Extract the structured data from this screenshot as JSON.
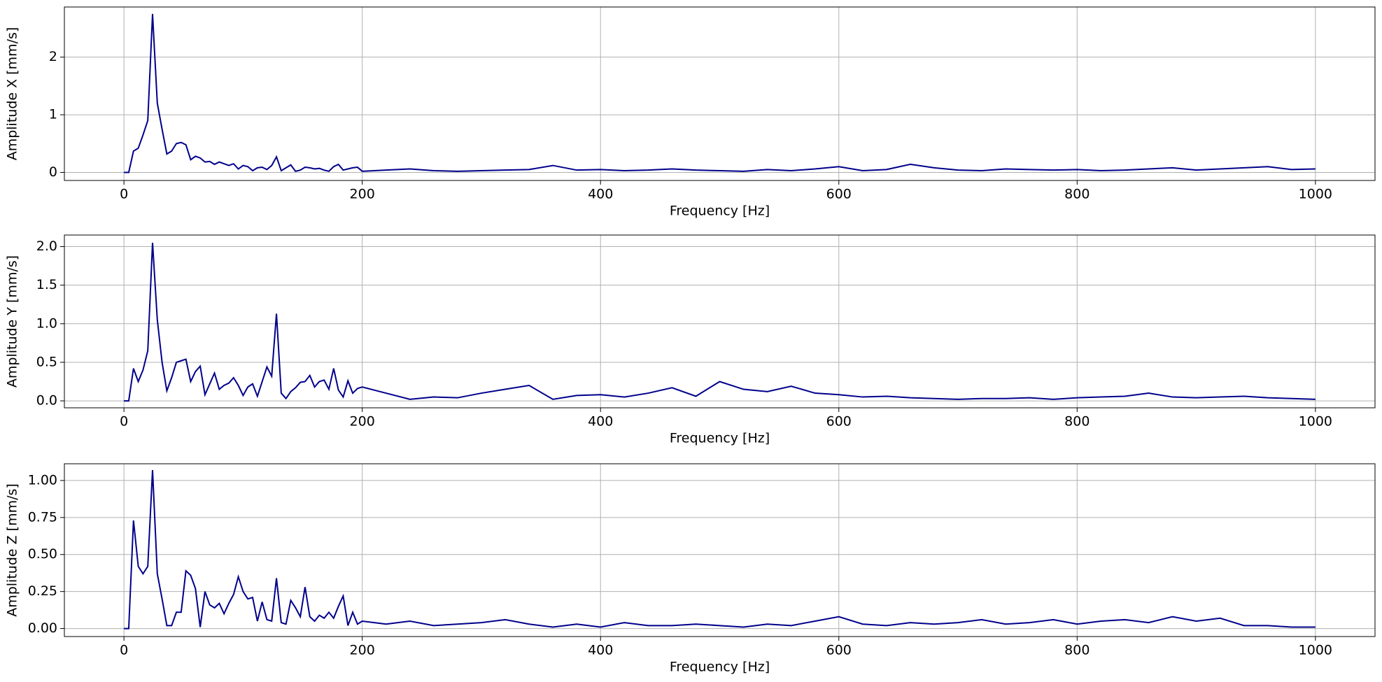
{
  "chart_data": [
    {
      "type": "line",
      "xlabel": "Frequency [Hz]",
      "ylabel": "Amplitude X [mm/s]",
      "color": "#00008b",
      "grid": true,
      "xlim": [
        -50,
        1050
      ],
      "xticks": [
        0,
        200,
        400,
        600,
        800,
        1000
      ],
      "ylim": [
        -0.14,
        2.87
      ],
      "yticks": [
        0,
        1,
        2
      ],
      "x": [
        0,
        4,
        8,
        12,
        16,
        20,
        24,
        28,
        32,
        36,
        40,
        44,
        48,
        52,
        56,
        60,
        64,
        68,
        72,
        76,
        80,
        84,
        88,
        92,
        96,
        100,
        104,
        108,
        112,
        116,
        120,
        124,
        128,
        132,
        136,
        140,
        144,
        148,
        152,
        156,
        160,
        164,
        168,
        172,
        176,
        180,
        184,
        188,
        192,
        196,
        200,
        220,
        240,
        260,
        280,
        300,
        320,
        340,
        360,
        380,
        400,
        420,
        440,
        460,
        480,
        500,
        520,
        540,
        560,
        580,
        600,
        620,
        640,
        660,
        680,
        700,
        720,
        740,
        760,
        780,
        800,
        820,
        840,
        860,
        880,
        900,
        920,
        940,
        960,
        980,
        1000
      ],
      "values": [
        0,
        0,
        0.37,
        0.42,
        0.65,
        0.9,
        2.75,
        1.2,
        0.75,
        0.32,
        0.37,
        0.5,
        0.52,
        0.48,
        0.22,
        0.28,
        0.25,
        0.18,
        0.19,
        0.14,
        0.18,
        0.15,
        0.12,
        0.15,
        0.06,
        0.12,
        0.1,
        0.03,
        0.08,
        0.09,
        0.05,
        0.12,
        0.27,
        0.03,
        0.08,
        0.13,
        0.02,
        0.04,
        0.09,
        0.08,
        0.06,
        0.07,
        0.04,
        0.02,
        0.1,
        0.14,
        0.04,
        0.06,
        0.08,
        0.09,
        0.02,
        0.04,
        0.06,
        0.03,
        0.02,
        0.03,
        0.04,
        0.05,
        0.12,
        0.04,
        0.05,
        0.03,
        0.04,
        0.06,
        0.04,
        0.03,
        0.02,
        0.05,
        0.03,
        0.06,
        0.1,
        0.03,
        0.05,
        0.14,
        0.08,
        0.04,
        0.03,
        0.06,
        0.05,
        0.04,
        0.05,
        0.03,
        0.04,
        0.06,
        0.08,
        0.04,
        0.06,
        0.08,
        0.1,
        0.05,
        0.06
      ]
    },
    {
      "type": "line",
      "xlabel": "Frequency [Hz]",
      "ylabel": "Amplitude Y [mm/s]",
      "color": "#00008b",
      "grid": true,
      "xlim": [
        -50,
        1050
      ],
      "xticks": [
        0,
        200,
        400,
        600,
        800,
        1000
      ],
      "ylim": [
        -0.09,
        2.15
      ],
      "yticks": [
        {
          "value": 0,
          "label": "0.0"
        },
        {
          "value": 0.5,
          "label": "0.5"
        },
        {
          "value": 1,
          "label": "1.0"
        },
        {
          "value": 1.5,
          "label": "1.5"
        },
        {
          "value": 2,
          "label": "2.0"
        }
      ],
      "x": [
        0,
        4,
        8,
        12,
        16,
        20,
        24,
        28,
        32,
        36,
        40,
        44,
        48,
        52,
        56,
        60,
        64,
        68,
        72,
        76,
        80,
        84,
        88,
        92,
        96,
        100,
        104,
        108,
        112,
        116,
        120,
        124,
        128,
        132,
        136,
        140,
        144,
        148,
        152,
        156,
        160,
        164,
        168,
        172,
        176,
        180,
        184,
        188,
        192,
        196,
        200,
        220,
        240,
        260,
        280,
        300,
        320,
        340,
        360,
        380,
        400,
        420,
        440,
        460,
        480,
        500,
        520,
        540,
        560,
        580,
        600,
        620,
        640,
        660,
        680,
        700,
        720,
        740,
        760,
        780,
        800,
        820,
        840,
        860,
        880,
        900,
        920,
        940,
        960,
        980,
        1000
      ],
      "values": [
        0,
        0,
        0.42,
        0.25,
        0.4,
        0.65,
        2.05,
        1.05,
        0.5,
        0.13,
        0.3,
        0.5,
        0.52,
        0.54,
        0.25,
        0.38,
        0.45,
        0.08,
        0.22,
        0.36,
        0.15,
        0.2,
        0.23,
        0.3,
        0.2,
        0.07,
        0.18,
        0.22,
        0.06,
        0.25,
        0.44,
        0.32,
        1.13,
        0.1,
        0.03,
        0.12,
        0.17,
        0.24,
        0.25,
        0.33,
        0.18,
        0.25,
        0.27,
        0.15,
        0.42,
        0.14,
        0.05,
        0.26,
        0.1,
        0.16,
        0.18,
        0.1,
        0.02,
        0.05,
        0.04,
        0.1,
        0.15,
        0.2,
        0.02,
        0.07,
        0.08,
        0.05,
        0.1,
        0.17,
        0.06,
        0.25,
        0.15,
        0.12,
        0.19,
        0.1,
        0.08,
        0.05,
        0.06,
        0.04,
        0.03,
        0.02,
        0.03,
        0.03,
        0.04,
        0.02,
        0.04,
        0.05,
        0.06,
        0.1,
        0.05,
        0.04,
        0.05,
        0.06,
        0.04,
        0.03,
        0.02
      ]
    },
    {
      "type": "line",
      "xlabel": "Frequency [Hz]",
      "ylabel": "Amplitude Z [mm/s]",
      "color": "#00008b",
      "grid": true,
      "xlim": [
        -50,
        1050
      ],
      "xticks": [
        0,
        200,
        400,
        600,
        800,
        1000
      ],
      "ylim": [
        -0.054,
        1.113
      ],
      "yticks": [
        {
          "value": 0,
          "label": "0.00"
        },
        {
          "value": 0.25,
          "label": "0.25"
        },
        {
          "value": 0.5,
          "label": "0.50"
        },
        {
          "value": 0.75,
          "label": "0.75"
        },
        {
          "value": 1,
          "label": "1.00"
        }
      ],
      "x": [
        0,
        4,
        8,
        12,
        16,
        20,
        24,
        28,
        32,
        36,
        40,
        44,
        48,
        52,
        56,
        60,
        64,
        68,
        72,
        76,
        80,
        84,
        88,
        92,
        96,
        100,
        104,
        108,
        112,
        116,
        120,
        124,
        128,
        132,
        136,
        140,
        144,
        148,
        152,
        156,
        160,
        164,
        168,
        172,
        176,
        180,
        184,
        188,
        192,
        196,
        200,
        220,
        240,
        260,
        280,
        300,
        320,
        340,
        360,
        380,
        400,
        420,
        440,
        460,
        480,
        500,
        520,
        540,
        560,
        580,
        600,
        620,
        640,
        660,
        680,
        700,
        720,
        740,
        760,
        780,
        800,
        820,
        840,
        860,
        880,
        900,
        920,
        940,
        960,
        980,
        1000
      ],
      "values": [
        0,
        0,
        0.73,
        0.42,
        0.37,
        0.42,
        1.07,
        0.37,
        0.2,
        0.02,
        0.02,
        0.11,
        0.11,
        0.39,
        0.36,
        0.27,
        0.01,
        0.25,
        0.16,
        0.14,
        0.17,
        0.1,
        0.17,
        0.23,
        0.35,
        0.25,
        0.2,
        0.21,
        0.05,
        0.18,
        0.06,
        0.05,
        0.34,
        0.04,
        0.03,
        0.19,
        0.14,
        0.08,
        0.28,
        0.08,
        0.05,
        0.09,
        0.07,
        0.11,
        0.07,
        0.15,
        0.22,
        0.02,
        0.11,
        0.03,
        0.05,
        0.03,
        0.05,
        0.02,
        0.03,
        0.04,
        0.06,
        0.03,
        0.01,
        0.03,
        0.01,
        0.04,
        0.02,
        0.02,
        0.03,
        0.02,
        0.01,
        0.03,
        0.02,
        0.05,
        0.08,
        0.03,
        0.02,
        0.04,
        0.03,
        0.04,
        0.06,
        0.03,
        0.04,
        0.06,
        0.03,
        0.05,
        0.06,
        0.04,
        0.08,
        0.05,
        0.07,
        0.02,
        0.02,
        0.01,
        0.01
      ]
    }
  ]
}
